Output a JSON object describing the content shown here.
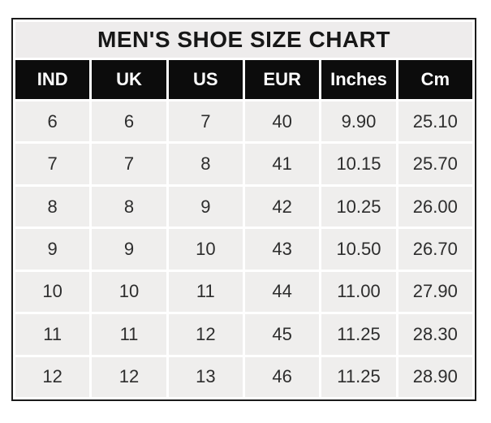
{
  "chart_data": {
    "type": "table",
    "title": "MEN'S SHOE SIZE CHART",
    "columns": [
      "IND",
      "UK",
      "US",
      "EUR",
      "Inches",
      "Cm"
    ],
    "rows": [
      [
        "6",
        "6",
        "7",
        "40",
        "9.90",
        "25.10"
      ],
      [
        "7",
        "7",
        "8",
        "41",
        "10.15",
        "25.70"
      ],
      [
        "8",
        "8",
        "9",
        "42",
        "10.25",
        "26.00"
      ],
      [
        "9",
        "9",
        "10",
        "43",
        "10.50",
        "26.70"
      ],
      [
        "10",
        "10",
        "11",
        "44",
        "11.00",
        "27.90"
      ],
      [
        "11",
        "11",
        "12",
        "45",
        "11.25",
        "28.30"
      ],
      [
        "12",
        "12",
        "13",
        "46",
        "11.25",
        "28.90"
      ]
    ]
  },
  "colors": {
    "header_bg": "#0c0c0c",
    "header_text": "#ffffff",
    "title_bg": "#eeecec",
    "title_text": "#171717",
    "cell_bg": "#efeeed",
    "body_text": "#2d2d2d",
    "border": "#1b1b1b"
  }
}
